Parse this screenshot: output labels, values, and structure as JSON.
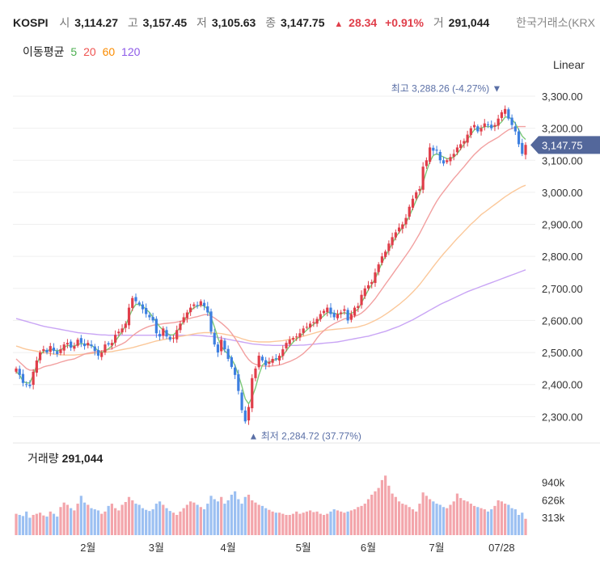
{
  "header": {
    "symbol": "KOSPI",
    "open_label": "시",
    "open": "3,114.27",
    "high_label": "고",
    "high": "3,157.45",
    "low_label": "저",
    "low": "3,105.63",
    "close_label": "종",
    "close": "3,147.75",
    "change_arrow": "▲",
    "change": "28.34",
    "change_pct": "+0.91%",
    "volume_label": "거",
    "volume": "291,044",
    "exchange": "한국거래소(KRX"
  },
  "ma_legend": {
    "title": "이동평균",
    "periods": [
      {
        "label": "5",
        "color": "#4caf50"
      },
      {
        "label": "20",
        "color": "#ef5350"
      },
      {
        "label": "60",
        "color": "#fb8c00"
      },
      {
        "label": "120",
        "color": "#8e5be8"
      }
    ]
  },
  "scale_mode": "Linear",
  "colors": {
    "up": "#e03e4a",
    "down": "#3d7fe0",
    "badge": "#53679b"
  },
  "chart_data": {
    "type": "candlestick",
    "price_ticks": [
      "3,300.00",
      "3,200.00",
      "3,100.00",
      "3,000.00",
      "2,900.00",
      "2,800.00",
      "2,700.00",
      "2,600.00",
      "2,500.00",
      "2,400.00",
      "2,300.00"
    ],
    "price_tick_values": [
      3300,
      3200,
      3100,
      3000,
      2900,
      2800,
      2700,
      2600,
      2500,
      2400,
      2300
    ],
    "ylim": [
      2263,
      3358
    ],
    "x_labels": [
      {
        "label": "2월",
        "index": 21
      },
      {
        "label": "3월",
        "index": 41
      },
      {
        "label": "4월",
        "index": 62
      },
      {
        "label": "5월",
        "index": 84
      },
      {
        "label": "6월",
        "index": 103
      },
      {
        "label": "7월",
        "index": 123
      },
      {
        "label": "07/28",
        "index": 142
      }
    ],
    "last_price_label": "3,147.75",
    "last_price": 3147.75,
    "high_annotation": {
      "label": "최고",
      "value": "3,288.26 (-4.27%)",
      "price": 3288.26,
      "index": 142,
      "marker": "▼"
    },
    "low_annotation": {
      "label": "최저",
      "value": "2,284.72 (37.77%)",
      "price": 2284.72,
      "index": 68,
      "marker": "▲"
    },
    "close": [
      2450,
      2430,
      2405,
      2400,
      2395,
      2440,
      2475,
      2500,
      2510,
      2500,
      2520,
      2505,
      2495,
      2510,
      2525,
      2530,
      2515,
      2520,
      2540,
      2530,
      2520,
      2530,
      2520,
      2505,
      2490,
      2500,
      2525,
      2525,
      2530,
      2555,
      2565,
      2575,
      2590,
      2640,
      2670,
      2660,
      2650,
      2635,
      2620,
      2610,
      2600,
      2560,
      2550,
      2575,
      2550,
      2540,
      2545,
      2570,
      2590,
      2610,
      2625,
      2640,
      2650,
      2645,
      2660,
      2645,
      2625,
      2565,
      2525,
      2500,
      2540,
      2510,
      2480,
      2455,
      2430,
      2380,
      2320,
      2285,
      2330,
      2420,
      2450,
      2490,
      2475,
      2460,
      2470,
      2480,
      2480,
      2490,
      2510,
      2530,
      2540,
      2545,
      2550,
      2560,
      2575,
      2580,
      2590,
      2595,
      2605,
      2620,
      2630,
      2640,
      2620,
      2610,
      2620,
      2625,
      2635,
      2600,
      2620,
      2640,
      2645,
      2680,
      2700,
      2710,
      2720,
      2750,
      2775,
      2800,
      2815,
      2840,
      2860,
      2875,
      2890,
      2900,
      2920,
      2955,
      2980,
      3000,
      3010,
      3080,
      3100,
      3140,
      3130,
      3130,
      3100,
      3090,
      3100,
      3110,
      3120,
      3140,
      3150,
      3160,
      3180,
      3200,
      3210,
      3190,
      3200,
      3215,
      3210,
      3200,
      3210,
      3230,
      3250,
      3260,
      3230,
      3210,
      3190,
      3150,
      3120,
      3148
    ],
    "ma5": [
      2440,
      2430,
      2410,
      2405,
      2405,
      2430,
      2460,
      2490,
      2505,
      2505,
      2510,
      2508,
      2505,
      2508,
      2515,
      2522,
      2520,
      2520,
      2525,
      2528,
      2526,
      2525,
      2522,
      2515,
      2505,
      2500,
      2505,
      2512,
      2520,
      2535,
      2550,
      2565,
      2585,
      2610,
      2635,
      2650,
      2650,
      2645,
      2635,
      2625,
      2610,
      2595,
      2580,
      2570,
      2560,
      2555,
      2555,
      2565,
      2580,
      2598,
      2615,
      2630,
      2640,
      2645,
      2648,
      2645,
      2635,
      2610,
      2580,
      2545,
      2520,
      2505,
      2495,
      2480,
      2460,
      2430,
      2395,
      2355,
      2340,
      2360,
      2390,
      2430,
      2460,
      2470,
      2470,
      2475,
      2478,
      2482,
      2490,
      2505,
      2520,
      2532,
      2542,
      2550,
      2560,
      2570,
      2580,
      2588,
      2596,
      2605,
      2615,
      2625,
      2625,
      2622,
      2620,
      2620,
      2625,
      2620,
      2622,
      2628,
      2635,
      2655,
      2675,
      2695,
      2712,
      2730,
      2755,
      2780,
      2800,
      2820,
      2840,
      2860,
      2875,
      2890,
      2905,
      2925,
      2950,
      2975,
      2995,
      3030,
      3065,
      3095,
      3115,
      3120,
      3115,
      3110,
      3105,
      3105,
      3110,
      3120,
      3135,
      3150,
      3165,
      3180,
      3195,
      3200,
      3200,
      3205,
      3205,
      3205,
      3205,
      3210,
      3220,
      3235,
      3235,
      3228,
      3215,
      3195,
      3175,
      3165
    ],
    "ma20": [
      2480,
      2470,
      2460,
      2450,
      2445,
      2445,
      2447,
      2450,
      2455,
      2458,
      2460,
      2463,
      2466,
      2470,
      2473,
      2476,
      2478,
      2480,
      2485,
      2490,
      2495,
      2498,
      2500,
      2502,
      2504,
      2505,
      2507,
      2509,
      2512,
      2517,
      2522,
      2527,
      2533,
      2542,
      2552,
      2560,
      2567,
      2573,
      2578,
      2582,
      2585,
      2587,
      2588,
      2590,
      2591,
      2592,
      2593,
      2595,
      2597,
      2600,
      2604,
      2607,
      2610,
      2612,
      2615,
      2618,
      2618,
      2614,
      2608,
      2600,
      2592,
      2583,
      2573,
      2560,
      2545,
      2528,
      2510,
      2492,
      2478,
      2468,
      2463,
      2460,
      2458,
      2457,
      2457,
      2458,
      2459,
      2461,
      2464,
      2468,
      2472,
      2477,
      2482,
      2489,
      2497,
      2507,
      2517,
      2530,
      2545,
      2558,
      2568,
      2577,
      2584,
      2590,
      2595,
      2600,
      2605,
      2607,
      2610,
      2613,
      2617,
      2623,
      2632,
      2643,
      2655,
      2668,
      2683,
      2698,
      2713,
      2728,
      2743,
      2758,
      2773,
      2788,
      2803,
      2818,
      2835,
      2853,
      2871,
      2892,
      2913,
      2933,
      2953,
      2972,
      2988,
      3002,
      3016,
      3030,
      3043,
      3055,
      3068,
      3080,
      3093,
      3106,
      3118,
      3128,
      3138,
      3146,
      3154,
      3160,
      3166,
      3172,
      3180,
      3188,
      3195,
      3199,
      3203,
      3205,
      3205,
      3205
    ],
    "ma60": [
      2520,
      2517,
      2513,
      2510,
      2508,
      2506,
      2504,
      2502,
      2500,
      2498,
      2497,
      2495,
      2494,
      2493,
      2492,
      2492,
      2492,
      2492,
      2493,
      2494,
      2495,
      2496,
      2497,
      2498,
      2499,
      2500,
      2501,
      2502,
      2503,
      2505,
      2507,
      2509,
      2511,
      2513,
      2515,
      2518,
      2521,
      2524,
      2527,
      2530,
      2533,
      2536,
      2538,
      2540,
      2542,
      2544,
      2546,
      2548,
      2550,
      2552,
      2554,
      2556,
      2558,
      2560,
      2561,
      2562,
      2562,
      2562,
      2561,
      2560,
      2559,
      2557,
      2555,
      2553,
      2550,
      2547,
      2543,
      2540,
      2537,
      2535,
      2534,
      2533,
      2533,
      2533,
      2533,
      2534,
      2535,
      2536,
      2537,
      2539,
      2541,
      2543,
      2545,
      2548,
      2551,
      2554,
      2557,
      2560,
      2563,
      2566,
      2568,
      2570,
      2571,
      2572,
      2573,
      2574,
      2575,
      2576,
      2577,
      2578,
      2580,
      2583,
      2586,
      2590,
      2595,
      2600,
      2606,
      2612,
      2619,
      2626,
      2634,
      2642,
      2650,
      2659,
      2668,
      2678,
      2689,
      2700,
      2712,
      2726,
      2740,
      2754,
      2768,
      2782,
      2795,
      2808,
      2820,
      2832,
      2844,
      2856,
      2867,
      2878,
      2889,
      2900,
      2910,
      2920,
      2930,
      2938,
      2946,
      2954,
      2962,
      2970,
      2978,
      2986,
      2993,
      3000,
      3006,
      3012,
      3018,
      3022
    ],
    "ma120": [
      2606,
      2603,
      2600,
      2597,
      2594,
      2591,
      2588,
      2585,
      2582,
      2580,
      2578,
      2576,
      2574,
      2572,
      2570,
      2568,
      2566,
      2564,
      2562,
      2561,
      2560,
      2559,
      2558,
      2557,
      2556,
      2555,
      2555,
      2554,
      2554,
      2554,
      2554,
      2554,
      2554,
      2554,
      2554,
      2554,
      2554,
      2554,
      2554,
      2554,
      2554,
      2554,
      2554,
      2554,
      2554,
      2554,
      2554,
      2554,
      2554,
      2554,
      2554,
      2554,
      2554,
      2554,
      2553,
      2552,
      2551,
      2550,
      2549,
      2547,
      2545,
      2543,
      2541,
      2539,
      2537,
      2535,
      2533,
      2531,
      2529,
      2527,
      2526,
      2525,
      2524,
      2523,
      2523,
      2522,
      2522,
      2522,
      2522,
      2522,
      2522,
      2522,
      2522,
      2523,
      2523,
      2524,
      2525,
      2526,
      2527,
      2528,
      2529,
      2530,
      2531,
      2532,
      2533,
      2535,
      2537,
      2539,
      2541,
      2543,
      2545,
      2547,
      2549,
      2551,
      2554,
      2557,
      2560,
      2563,
      2566,
      2570,
      2574,
      2578,
      2582,
      2587,
      2592,
      2597,
      2602,
      2608,
      2614,
      2620,
      2626,
      2632,
      2638,
      2644,
      2650,
      2655,
      2660,
      2665,
      2670,
      2675,
      2680,
      2685,
      2690,
      2694,
      2698,
      2702,
      2706,
      2710,
      2714,
      2718,
      2722,
      2726,
      2730,
      2734,
      2738,
      2742,
      2746,
      2750,
      2754,
      2758
    ],
    "volume_ticks": [
      "940k",
      "626k",
      "313k"
    ],
    "volume_tick_values": [
      940000,
      626000,
      313000
    ],
    "volume_max": 1180000,
    "volume": [
      380,
      360,
      340,
      420,
      310,
      360,
      380,
      400,
      350,
      330,
      420,
      380,
      330,
      500,
      580,
      540,
      480,
      440,
      560,
      700,
      580,
      540,
      480,
      460,
      440,
      380,
      420,
      520,
      560,
      480,
      440,
      540,
      590,
      680,
      620,
      560,
      540,
      480,
      450,
      430,
      460,
      560,
      600,
      540,
      480,
      430,
      400,
      360,
      420,
      480,
      540,
      600,
      580,
      540,
      500,
      460,
      560,
      700,
      640,
      600,
      680,
      560,
      620,
      720,
      780,
      640,
      560,
      680,
      720,
      620,
      580,
      540,
      520,
      480,
      450,
      420,
      400,
      400,
      380,
      360,
      360,
      380,
      420,
      380,
      400,
      420,
      440,
      410,
      420,
      380,
      360,
      380,
      420,
      460,
      440,
      420,
      400,
      420,
      440,
      460,
      500,
      520,
      560,
      640,
      720,
      780,
      840,
      980,
      1060,
      880,
      740,
      680,
      600,
      560,
      540,
      500,
      460,
      420,
      560,
      760,
      700,
      640,
      600,
      560,
      540,
      500,
      480,
      540,
      600,
      740,
      660,
      620,
      600,
      560,
      520,
      500,
      480,
      460,
      420,
      460,
      520,
      620,
      600,
      560,
      540,
      480,
      460,
      360,
      400,
      291
    ]
  }
}
